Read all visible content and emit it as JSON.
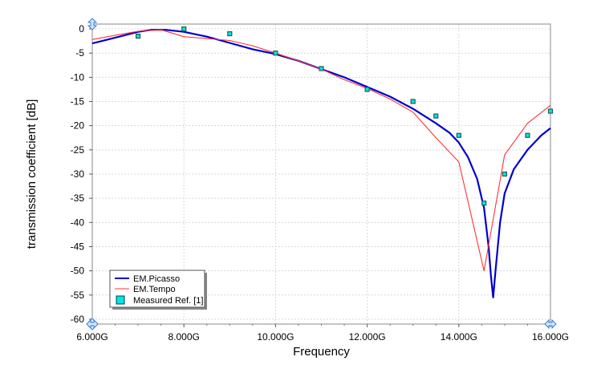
{
  "chart_data": {
    "type": "line",
    "xlabel": "Frequency",
    "ylabel": "transmission coefficient [dB]",
    "xlim": [
      6,
      16
    ],
    "ylim": [
      -61,
      1
    ],
    "x_ticks": [
      6,
      8,
      10,
      12,
      14,
      16
    ],
    "x_tick_labels": [
      "6.000G",
      "8.000G",
      "10.000G",
      "12.000G",
      "14.000G",
      "16.000G"
    ],
    "y_ticks": [
      0,
      -5,
      -10,
      -15,
      -20,
      -25,
      -30,
      -35,
      -40,
      -45,
      -50,
      -55,
      -60
    ],
    "y_tick_labels": [
      "0",
      "-5",
      "-10",
      "-15",
      "-20",
      "-25",
      "-30",
      "-35",
      "-40",
      "-45",
      "-50",
      "-55",
      "-60"
    ],
    "grid": true,
    "legend_position": "bottom-left",
    "series": [
      {
        "name": "EM.Picasso",
        "style": "line",
        "color": "#0000cc",
        "x": [
          6.0,
          6.5,
          7.0,
          7.3,
          7.6,
          8.0,
          8.5,
          9.0,
          9.5,
          10.0,
          10.5,
          11.0,
          11.5,
          12.0,
          12.5,
          13.0,
          13.5,
          13.8,
          14.0,
          14.2,
          14.4,
          14.55,
          14.65,
          14.7,
          14.75,
          14.8,
          14.9,
          15.0,
          15.2,
          15.5,
          15.8,
          16.0
        ],
        "y": [
          -3.0,
          -1.8,
          -0.6,
          -0.2,
          -0.2,
          -0.6,
          -1.6,
          -2.9,
          -4.2,
          -5.2,
          -6.6,
          -8.3,
          -10.0,
          -12.0,
          -14.0,
          -16.5,
          -19.5,
          -21.5,
          -23.5,
          -26.5,
          -31.0,
          -37.0,
          -45.0,
          -51.0,
          -55.5,
          -50.0,
          -40.0,
          -34.0,
          -29.0,
          -25.0,
          -22.0,
          -20.5
        ]
      },
      {
        "name": "EM.Tempo",
        "style": "line",
        "color": "#ff3333",
        "x": [
          6.0,
          6.5,
          7.0,
          7.5,
          8.0,
          8.5,
          9.0,
          9.5,
          10.0,
          10.5,
          11.0,
          11.5,
          12.0,
          12.5,
          13.0,
          13.5,
          14.0,
          14.55,
          15.0,
          15.5,
          16.0
        ],
        "y": [
          -2.2,
          -1.3,
          -0.5,
          -0.2,
          -1.6,
          -2.0,
          -2.4,
          -3.5,
          -5.0,
          -6.6,
          -8.3,
          -10.5,
          -12.3,
          -14.5,
          -17.2,
          -22.5,
          -27.5,
          -50.0,
          -26.0,
          -19.5,
          -15.8
        ]
      },
      {
        "name": "Measured Ref. [1]",
        "style": "scatter",
        "color": "#00e5e5",
        "x": [
          7.0,
          8.0,
          9.0,
          10.0,
          11.0,
          12.0,
          13.0,
          13.5,
          14.0,
          14.55,
          15.0,
          15.5,
          16.0
        ],
        "y": [
          -1.5,
          0.0,
          -1.0,
          -5.0,
          -8.2,
          -12.5,
          -15.0,
          -18.0,
          -22.0,
          -36.0,
          -30.0,
          -22.0,
          -17.0
        ]
      }
    ]
  }
}
